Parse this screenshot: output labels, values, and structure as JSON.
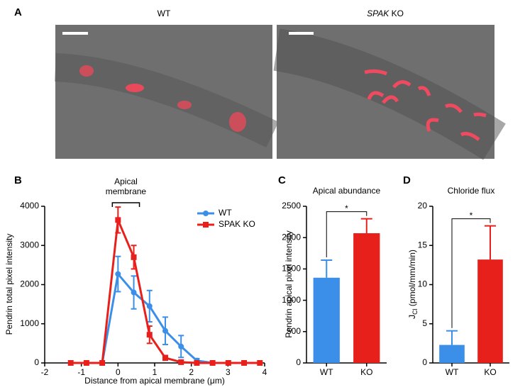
{
  "figure": {
    "panel_labels": [
      "A",
      "B",
      "C",
      "D"
    ],
    "images": [
      {
        "title": "WT"
      },
      {
        "title_italic": "SPAK",
        "title": "KO"
      }
    ]
  },
  "chart_data": [
    {
      "type": "line",
      "annotation": [
        "Apical",
        "membrane"
      ],
      "xlabel": "Distance from apical membrane (μm)",
      "ylabel": "Pendrin total pixel intensity",
      "x": [
        -1.29,
        -0.86,
        -0.43,
        0,
        0.43,
        0.86,
        1.29,
        1.72,
        2.15,
        2.58,
        3.01,
        3.44,
        3.87
      ],
      "xlim": [
        -2,
        4
      ],
      "xticks": [
        -2,
        -1,
        0,
        1,
        2,
        3,
        4
      ],
      "ylim": [
        0,
        4000
      ],
      "yticks": [
        0,
        1000,
        2000,
        3000,
        4000
      ],
      "legend": "upper right",
      "series": [
        {
          "name": "WT",
          "color": "#3b8fe8",
          "marker": "circle",
          "values": [
            0,
            0,
            0,
            2270,
            1800,
            1450,
            820,
            420,
            60,
            0,
            0,
            0,
            0
          ],
          "errors": [
            0,
            0,
            0,
            450,
            420,
            400,
            350,
            280,
            50,
            0,
            0,
            0,
            0
          ]
        },
        {
          "name": "SPAK KO",
          "color": "#e8201c",
          "marker": "square",
          "values": [
            0,
            0,
            0,
            3650,
            2700,
            720,
            130,
            20,
            0,
            0,
            0,
            0,
            0
          ],
          "errors": [
            0,
            0,
            0,
            330,
            300,
            220,
            60,
            20,
            0,
            0,
            0,
            0,
            0
          ]
        }
      ]
    },
    {
      "type": "bar",
      "title": "Apical abundance",
      "ylabel": "Pendrin apical pixel intensity",
      "categories": [
        "WT",
        "KO"
      ],
      "values": [
        1360,
        2070
      ],
      "errors": [
        280,
        230
      ],
      "colors": [
        "#3b8fe8",
        "#e8201c"
      ],
      "ylim": [
        0,
        2500
      ],
      "yticks": [
        0,
        500,
        1000,
        1500,
        2000,
        2500
      ],
      "annotation": "*"
    },
    {
      "type": "bar",
      "title": "Chloride flux",
      "ylabel": {
        "main": "J",
        "sub": "Cl",
        "rest": " (pmol/mm/min)"
      },
      "categories": [
        "WT",
        "KO"
      ],
      "values": [
        2.3,
        13.2
      ],
      "errors": [
        1.8,
        4.3
      ],
      "colors": [
        "#3b8fe8",
        "#e8201c"
      ],
      "ylim": [
        0,
        20
      ],
      "yticks": [
        0,
        5,
        10,
        15,
        20
      ],
      "annotation": "*"
    }
  ]
}
